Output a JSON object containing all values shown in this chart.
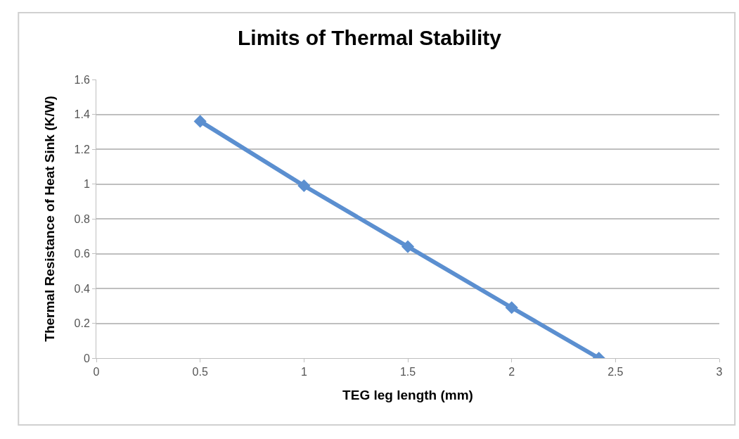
{
  "chart_data": {
    "type": "line",
    "title": "Limits of Thermal Stability",
    "xlabel": "TEG leg length (mm)",
    "ylabel": "Thermal Resistance of Heat Sink (K/W)",
    "x": [
      0.5,
      1,
      1.5,
      2,
      2.42
    ],
    "series": [
      {
        "color": "#5b8fd0",
        "values": [
          1.36,
          0.99,
          0.64,
          0.29,
          0
        ]
      }
    ],
    "xlim": [
      0,
      3
    ],
    "xticks": [
      0,
      0.5,
      1,
      1.5,
      2,
      2.5,
      3
    ],
    "ylim": [
      0,
      1.6
    ],
    "yticks": [
      0,
      0.2,
      0.4,
      0.6,
      0.8,
      1,
      1.2,
      1.4,
      1.6
    ],
    "grid": "y",
    "marker": "diamond",
    "line_style": "solid"
  }
}
